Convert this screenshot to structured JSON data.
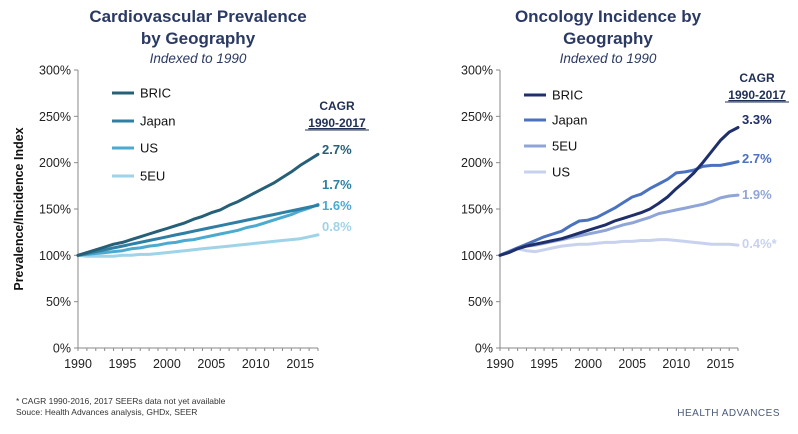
{
  "footnotes": {
    "line1": "* CAGR 1990-2016, 2017 SEERs data not yet available",
    "line2": "Souce: Health Advances analysis, GHDx, SEER"
  },
  "logo": {
    "text": "HEALTH ADVANCES"
  },
  "chart_data": [
    {
      "type": "line",
      "title": "Cardiovascular Prevalence by Geography",
      "title_lines": [
        "Cardiovascular Prevalence",
        "by Geography"
      ],
      "subtitle": "Indexed to 1990",
      "ylabel": "Prevalence/Incidence Index",
      "xlabel": "",
      "xlim": [
        1990,
        2017
      ],
      "ylim": [
        0,
        300
      ],
      "x_ticks": [
        1990,
        1995,
        2000,
        2005,
        2010,
        2015
      ],
      "x_tick_labels": [
        "1990",
        "1995",
        "2000",
        "2005",
        "2010",
        "2015"
      ],
      "y_ticks": [
        0,
        50,
        100,
        150,
        200,
        250,
        300
      ],
      "y_tick_labels": [
        "0%",
        "50%",
        "100%",
        "150%",
        "200%",
        "250%",
        "300%"
      ],
      "grid": false,
      "legend_position": "top-left",
      "cagr_header": [
        "CAGR",
        "1990-2017"
      ],
      "x": [
        1990,
        1991,
        1992,
        1993,
        1994,
        1995,
        1996,
        1997,
        1998,
        1999,
        2000,
        2001,
        2002,
        2003,
        2004,
        2005,
        2006,
        2007,
        2008,
        2009,
        2010,
        2011,
        2012,
        2013,
        2014,
        2015,
        2016,
        2017
      ],
      "series": [
        {
          "name": "BRIC",
          "color": "#255f78",
          "cagr": "2.7%",
          "values": [
            100,
            103,
            106,
            109,
            112,
            114,
            117,
            120,
            123,
            126,
            129,
            132,
            135,
            139,
            142,
            146,
            149,
            154,
            158,
            163,
            168,
            173,
            178,
            184,
            190,
            197,
            203,
            209
          ]
        },
        {
          "name": "Japan",
          "color": "#2f7fa5",
          "cagr": "1.7%",
          "values": [
            100,
            102,
            104,
            106,
            108,
            110,
            112,
            114,
            116,
            118,
            120,
            122,
            124,
            126,
            128,
            130,
            132,
            134,
            136,
            138,
            140,
            142,
            144,
            146,
            148,
            150,
            152,
            154
          ]
        },
        {
          "name": "US",
          "color": "#4aaad0",
          "cagr": "1.6%",
          "values": [
            100,
            101,
            102,
            103,
            104,
            105,
            107,
            108,
            110,
            111,
            113,
            114,
            116,
            117,
            119,
            121,
            123,
            125,
            127,
            130,
            132,
            135,
            138,
            141,
            144,
            148,
            151,
            155
          ]
        },
        {
          "name": "5EU",
          "color": "#9fd3e8",
          "cagr": "0.8%",
          "values": [
            100,
            99,
            99,
            99,
            99,
            100,
            100,
            101,
            101,
            102,
            103,
            104,
            105,
            106,
            107,
            108,
            109,
            110,
            111,
            112,
            113,
            114,
            115,
            116,
            117,
            118,
            120,
            122
          ]
        }
      ]
    },
    {
      "type": "line",
      "title": "Oncology Incidence by Geography",
      "title_lines": [
        "Oncology Incidence by",
        "Geography"
      ],
      "subtitle": "Indexed to 1990",
      "ylabel": "",
      "xlabel": "",
      "xlim": [
        1990,
        2017
      ],
      "ylim": [
        0,
        300
      ],
      "x_ticks": [
        1990,
        1995,
        2000,
        2005,
        2010,
        2015
      ],
      "x_tick_labels": [
        "1990",
        "1995",
        "2000",
        "2005",
        "2010",
        "2015"
      ],
      "y_ticks": [
        0,
        50,
        100,
        150,
        200,
        250,
        300
      ],
      "y_tick_labels": [
        "0%",
        "50%",
        "100%",
        "150%",
        "200%",
        "250%",
        "300%"
      ],
      "grid": false,
      "legend_position": "top-left",
      "cagr_header": [
        "CAGR",
        "1990-2017"
      ],
      "x": [
        1990,
        1991,
        1992,
        1993,
        1994,
        1995,
        1996,
        1997,
        1998,
        1999,
        2000,
        2001,
        2002,
        2003,
        2004,
        2005,
        2006,
        2007,
        2008,
        2009,
        2010,
        2011,
        2012,
        2013,
        2014,
        2015,
        2016,
        2017
      ],
      "series": [
        {
          "name": "BRIC",
          "color": "#1f2f6b",
          "cagr": "3.3%",
          "values": [
            100,
            103,
            107,
            110,
            112,
            114,
            116,
            118,
            121,
            124,
            127,
            130,
            133,
            137,
            140,
            143,
            146,
            150,
            156,
            163,
            172,
            180,
            189,
            200,
            212,
            224,
            233,
            238
          ]
        },
        {
          "name": "Japan",
          "color": "#4b72bf",
          "cagr": "2.7%",
          "values": [
            100,
            104,
            108,
            112,
            116,
            120,
            123,
            126,
            132,
            137,
            138,
            141,
            146,
            151,
            157,
            163,
            166,
            172,
            177,
            182,
            189,
            190,
            192,
            196,
            197,
            197,
            199,
            201
          ]
        },
        {
          "name": "5EU",
          "color": "#8fa5d8",
          "cagr": "1.9%",
          "values": [
            100,
            104,
            108,
            110,
            111,
            113,
            115,
            117,
            119,
            121,
            123,
            125,
            127,
            130,
            133,
            135,
            138,
            141,
            145,
            147,
            149,
            151,
            153,
            155,
            158,
            162,
            164,
            165
          ]
        },
        {
          "name": "US",
          "color": "#c8d1ee",
          "cagr": "0.4%*",
          "values": [
            100,
            104,
            107,
            105,
            104,
            106,
            108,
            110,
            111,
            112,
            112,
            113,
            114,
            114,
            115,
            115,
            116,
            116,
            117,
            117,
            116,
            115,
            114,
            113,
            112,
            112,
            112,
            111
          ]
        }
      ]
    }
  ]
}
